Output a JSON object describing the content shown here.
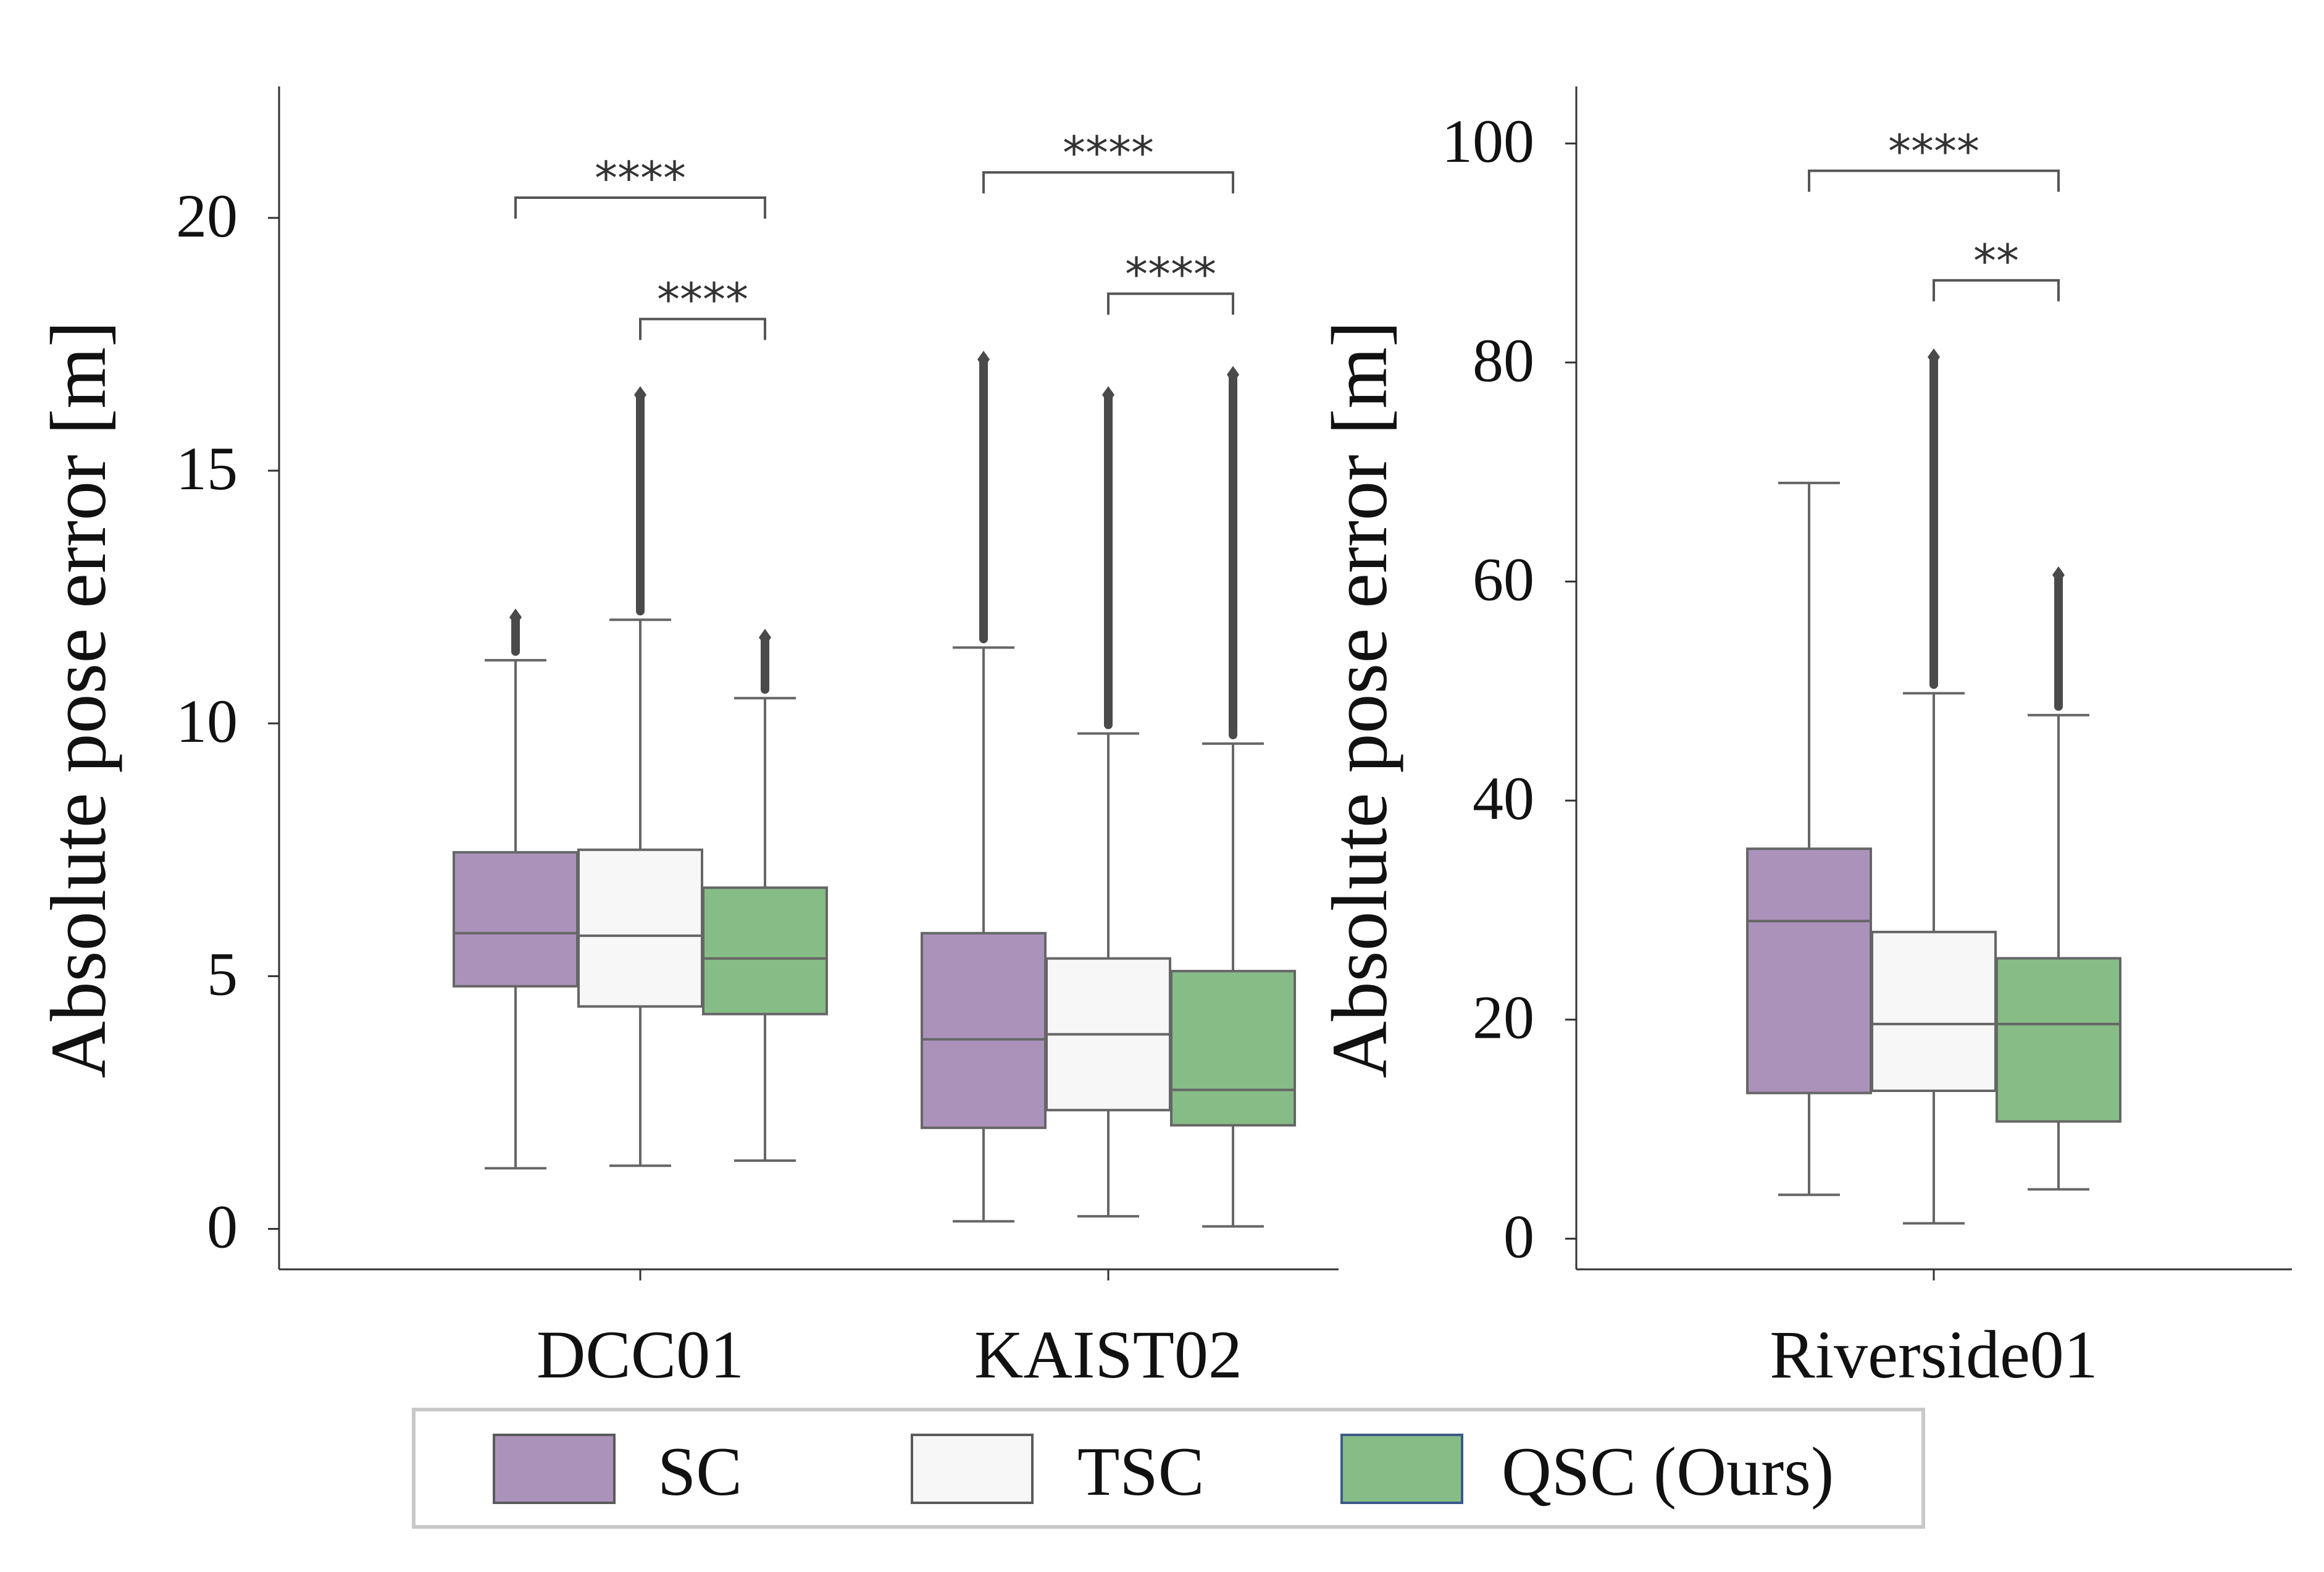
{
  "chart_data": [
    {
      "type": "box",
      "ylabel": "Absolute pose error [m]",
      "ylim": [
        -0.8,
        22.6
      ],
      "yticks": [
        0,
        5,
        10,
        15,
        20
      ],
      "categories": [
        "DCC01",
        "KAIST02"
      ],
      "series_names": [
        "SC",
        "TSC",
        "QSC (Ours)"
      ],
      "boxes": [
        [
          {
            "whisker_low": 1.2,
            "q1": 4.8,
            "median": 5.85,
            "q3": 7.45,
            "whisker_high": 11.25,
            "outlier_max": 12.1
          },
          {
            "whisker_low": 1.25,
            "q1": 4.4,
            "median": 5.8,
            "q3": 7.5,
            "whisker_high": 12.05,
            "outlier_max": 16.5
          },
          {
            "whisker_low": 1.35,
            "q1": 4.25,
            "median": 5.35,
            "q3": 6.75,
            "whisker_high": 10.5,
            "outlier_max": 11.7
          }
        ],
        [
          {
            "whisker_low": 0.15,
            "q1": 2.0,
            "median": 3.75,
            "q3": 5.85,
            "whisker_high": 11.5,
            "outlier_max": 17.2
          },
          {
            "whisker_low": 0.25,
            "q1": 2.35,
            "median": 3.85,
            "q3": 5.35,
            "whisker_high": 9.8,
            "outlier_max": 16.5
          },
          {
            "whisker_low": 0.05,
            "q1": 2.05,
            "median": 2.75,
            "q3": 5.1,
            "whisker_high": 9.6,
            "outlier_max": 16.9
          }
        ]
      ],
      "significance": [
        {
          "category": "DCC01",
          "from": "SC",
          "to": "QSC (Ours)",
          "label": "****",
          "level": 20.4
        },
        {
          "category": "DCC01",
          "from": "TSC",
          "to": "QSC (Ours)",
          "label": "****",
          "level": 18.0
        },
        {
          "category": "KAIST02",
          "from": "SC",
          "to": "QSC (Ours)",
          "label": "****",
          "level": 20.9
        },
        {
          "category": "KAIST02",
          "from": "TSC",
          "to": "QSC (Ours)",
          "label": "****",
          "level": 18.5
        }
      ]
    },
    {
      "type": "box",
      "ylabel": "Absolute pose error [m]",
      "ylim": [
        -2.8,
        105.2
      ],
      "yticks": [
        0,
        20,
        40,
        60,
        80,
        100
      ],
      "categories": [
        "Riverside01"
      ],
      "series_names": [
        "SC",
        "TSC",
        "QSC (Ours)"
      ],
      "boxes": [
        [
          {
            "whisker_low": 4.0,
            "q1": 13.3,
            "median": 29.0,
            "q3": 35.6,
            "whisker_high": 69.0,
            "outlier_max": null
          },
          {
            "whisker_low": 1.4,
            "q1": 13.5,
            "median": 19.6,
            "q3": 28.0,
            "whisker_high": 49.8,
            "outlier_max": 80.5
          },
          {
            "whisker_low": 4.5,
            "q1": 10.7,
            "median": 19.6,
            "q3": 25.6,
            "whisker_high": 47.8,
            "outlier_max": 60.6
          }
        ]
      ],
      "significance": [
        {
          "category": "Riverside01",
          "from": "SC",
          "to": "QSC (Ours)",
          "label": "****",
          "level": 97.5
        },
        {
          "category": "Riverside01",
          "from": "TSC",
          "to": "QSC (Ours)",
          "label": "**",
          "level": 87.5
        }
      ]
    }
  ],
  "legend": {
    "items": [
      {
        "label": "SC",
        "color": "#ab92bb"
      },
      {
        "label": "TSC",
        "color": "#f7f7f7"
      },
      {
        "label": "QSC (Ours)",
        "color": "#86bd86"
      }
    ]
  },
  "colors": {
    "line": "#666666",
    "axis": "#333333",
    "sig": "#555555",
    "legend_border": "#c8c8c8"
  }
}
